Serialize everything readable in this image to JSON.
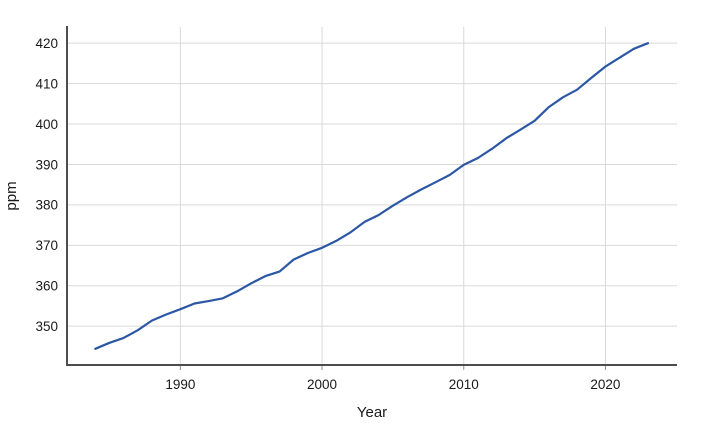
{
  "chart_data": {
    "type": "line",
    "title": "",
    "xlabel": "Year",
    "ylabel": "ppm",
    "x": [
      1984,
      1985,
      1986,
      1987,
      1988,
      1989,
      1990,
      1991,
      1992,
      1993,
      1994,
      1995,
      1996,
      1997,
      1998,
      1999,
      2000,
      2001,
      2002,
      2003,
      2004,
      2005,
      2006,
      2007,
      2008,
      2009,
      2010,
      2011,
      2012,
      2013,
      2014,
      2015,
      2016,
      2017,
      2018,
      2019,
      2020,
      2021,
      2022,
      2023
    ],
    "series": [
      {
        "name": "ppm",
        "color": "#2c57a5",
        "values": [
          344.4,
          345.9,
          347.1,
          349.0,
          351.4,
          352.9,
          354.2,
          355.6,
          356.2,
          356.9,
          358.6,
          360.6,
          362.4,
          363.5,
          366.5,
          368.1,
          369.4,
          371.1,
          373.2,
          375.8,
          377.5,
          379.8,
          381.9,
          383.8,
          385.6,
          387.4,
          389.9,
          391.6,
          393.9,
          396.5,
          398.6,
          400.8,
          404.2,
          406.6,
          408.5,
          411.4,
          414.2,
          416.4,
          418.6,
          420.0
        ]
      }
    ],
    "xlim": [
      1982.0,
      2025.05
    ],
    "ylim": [
      340.4,
      424.0
    ],
    "xticks": [
      1990,
      2000,
      2010,
      2020
    ],
    "yticks": [
      350,
      360,
      370,
      380,
      390,
      400,
      410,
      420
    ],
    "grid": true,
    "legend": "none",
    "colors": {
      "background": "#ffffff",
      "grid": "#d9d9d9",
      "axis": "#4d4d4d",
      "tick": "#8f8f8f",
      "text": "#1a1a1a"
    }
  }
}
